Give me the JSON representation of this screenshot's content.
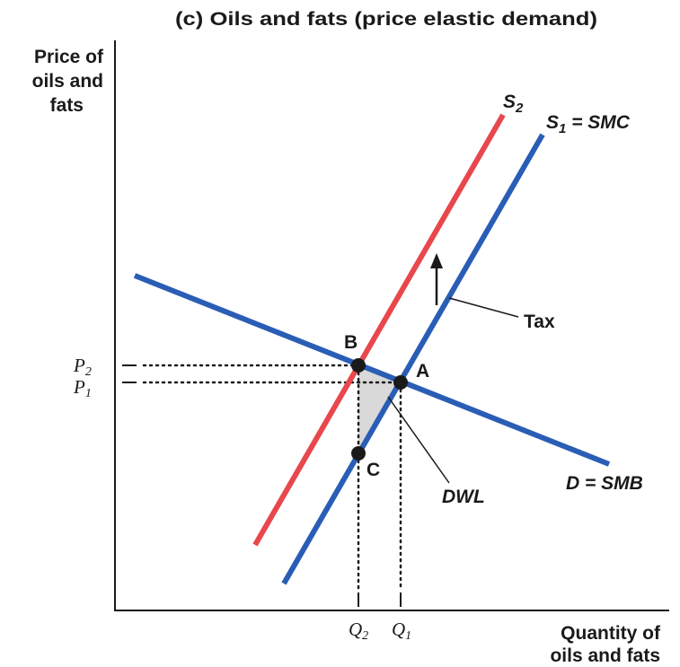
{
  "title": "(c) Oils and fats (price elastic demand)",
  "y_axis_label": [
    "Price of",
    "oils and",
    "fats"
  ],
  "x_axis_label": [
    "Quantity of",
    "oils and fats"
  ],
  "curves": {
    "s2": {
      "main": "S",
      "sub": "2"
    },
    "s1": {
      "main": "S",
      "sub": "1",
      "rest": " = SMC"
    },
    "demand": "D = SMB"
  },
  "points": {
    "b": "B",
    "a": "A",
    "c": "C"
  },
  "annotations": {
    "tax": "Tax",
    "dwl": "DWL"
  },
  "price_ticks": [
    {
      "main": "P",
      "sub": "2"
    },
    {
      "main": "P",
      "sub": "1"
    }
  ],
  "quantity_ticks": [
    {
      "main": "Q",
      "sub": "2"
    },
    {
      "main": "Q",
      "sub": "1"
    }
  ]
}
